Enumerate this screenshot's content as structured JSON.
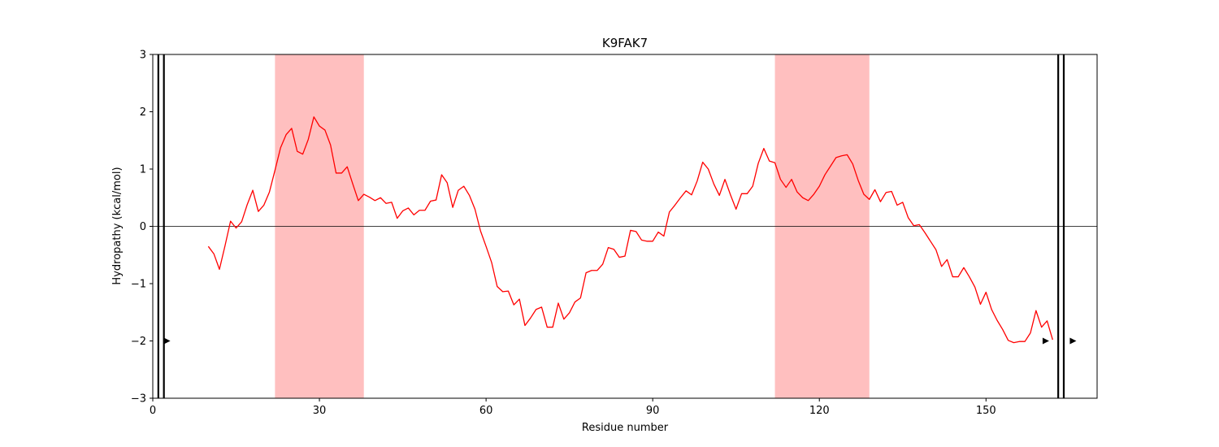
{
  "chart_data": {
    "type": "line",
    "title": "K9FAK7",
    "xlabel": "Residue number",
    "ylabel": "Hydropathy (kcal/mol)",
    "xlim": [
      0,
      170
    ],
    "ylim": [
      -3,
      3
    ],
    "xticks": [
      0,
      30,
      60,
      90,
      120,
      150
    ],
    "yticks": [
      -3,
      -2,
      -1,
      0,
      1,
      2,
      3
    ],
    "xtick_labels": [
      "0",
      "30",
      "60",
      "90",
      "120",
      "150"
    ],
    "ytick_labels": [
      "−3",
      "−2",
      "−1",
      "0",
      "1",
      "2",
      "3"
    ],
    "grid": false,
    "zero_line": true,
    "line_color": "#ff0000",
    "shaded_regions": {
      "color": "#ffbfbf",
      "ranges": [
        [
          22,
          38
        ],
        [
          112,
          129
        ]
      ]
    },
    "vertical_lines": [
      1,
      2,
      163,
      164
    ],
    "markers": [
      {
        "x": 2.5,
        "y": -2,
        "symbol": "▶"
      },
      {
        "x": 160.7,
        "y": -2,
        "symbol": "▶"
      },
      {
        "x": 165.6,
        "y": -2,
        "symbol": "▶"
      }
    ],
    "series": [
      {
        "x": [
          10,
          11,
          12,
          13,
          14,
          15,
          16,
          17,
          18,
          19,
          20,
          21,
          22,
          23,
          24,
          25,
          26,
          27,
          28,
          29,
          30,
          31,
          32,
          33,
          34,
          35,
          36,
          37,
          38,
          39,
          40,
          41,
          42,
          43,
          44,
          45,
          46,
          47,
          48,
          49,
          50,
          51,
          52,
          53,
          54,
          55,
          56,
          57,
          58,
          59,
          60,
          61,
          62,
          63,
          64,
          65,
          66,
          67,
          68,
          69,
          70,
          71,
          72,
          73,
          74,
          75,
          76,
          77,
          78,
          79,
          80,
          81,
          82,
          83,
          84,
          85,
          86,
          87,
          88,
          89,
          90,
          91,
          92,
          93,
          94,
          95,
          96,
          97,
          98,
          99,
          100,
          101,
          102,
          103,
          104,
          105,
          106,
          107,
          108,
          109,
          110,
          111,
          112,
          113,
          114,
          115,
          116,
          117,
          118,
          119,
          120,
          121,
          122,
          123,
          124,
          125,
          126,
          127,
          128,
          129,
          130,
          131,
          132,
          133,
          134,
          135,
          136,
          137,
          138,
          139,
          140,
          141,
          142,
          143,
          144,
          145,
          146,
          147,
          148,
          149,
          150,
          151,
          152,
          153,
          154,
          155,
          156,
          157,
          158,
          159,
          160,
          161,
          162
        ],
        "values": [
          -0.35,
          -0.48,
          -0.75,
          -0.34,
          0.09,
          -0.03,
          0.08,
          0.38,
          0.63,
          0.26,
          0.37,
          0.6,
          0.98,
          1.37,
          1.6,
          1.71,
          1.31,
          1.26,
          1.52,
          1.91,
          1.75,
          1.68,
          1.42,
          0.93,
          0.93,
          1.04,
          0.74,
          0.45,
          0.56,
          0.51,
          0.45,
          0.5,
          0.4,
          0.42,
          0.14,
          0.27,
          0.32,
          0.2,
          0.28,
          0.28,
          0.44,
          0.46,
          0.9,
          0.76,
          0.33,
          0.63,
          0.7,
          0.54,
          0.3,
          -0.08,
          -0.35,
          -0.63,
          -1.05,
          -1.14,
          -1.13,
          -1.37,
          -1.27,
          -1.73,
          -1.6,
          -1.45,
          -1.41,
          -1.76,
          -1.76,
          -1.34,
          -1.62,
          -1.51,
          -1.32,
          -1.25,
          -0.81,
          -0.77,
          -0.77,
          -0.66,
          -0.37,
          -0.4,
          -0.54,
          -0.52,
          -0.07,
          -0.09,
          -0.24,
          -0.26,
          -0.26,
          -0.1,
          -0.17,
          0.25,
          0.37,
          0.5,
          0.62,
          0.55,
          0.79,
          1.12,
          1.0,
          0.74,
          0.54,
          0.82,
          0.55,
          0.3,
          0.57,
          0.57,
          0.7,
          1.1,
          1.36,
          1.14,
          1.11,
          0.82,
          0.68,
          0.82,
          0.6,
          0.5,
          0.45,
          0.56,
          0.7,
          0.9,
          1.05,
          1.2,
          1.23,
          1.25,
          1.09,
          0.8,
          0.56,
          0.47,
          0.64,
          0.43,
          0.59,
          0.61,
          0.37,
          0.42,
          0.15,
          0.01,
          0.03,
          -0.11,
          -0.26,
          -0.41,
          -0.7,
          -0.58,
          -0.88,
          -0.88,
          -0.72,
          -0.88,
          -1.06,
          -1.36,
          -1.15,
          -1.45,
          -1.64,
          -1.8,
          -1.99,
          -2.03,
          -2.01,
          -2.01,
          -1.86,
          -1.47,
          -1.76,
          -1.65,
          -1.98
        ]
      }
    ]
  }
}
